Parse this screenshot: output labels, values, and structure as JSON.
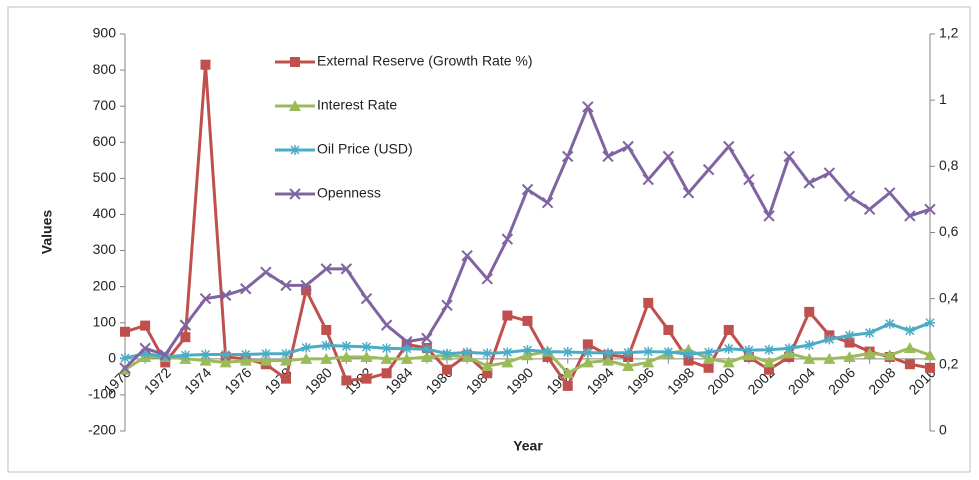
{
  "chart_data": {
    "type": "line",
    "x_label": "Year",
    "y_label": "Values",
    "categories": [
      "1970",
      null,
      "1972",
      null,
      "1974",
      null,
      "1976",
      null,
      "1978",
      null,
      "1980",
      null,
      "1982",
      null,
      "1984",
      null,
      "1986",
      null,
      "1988",
      null,
      "1990",
      null,
      "1992",
      null,
      "1994",
      null,
      "1996",
      null,
      "1998",
      null,
      "2000",
      null,
      "2002",
      null,
      "2004",
      null,
      "2006",
      null,
      "2008",
      null,
      "2010"
    ],
    "ylim": [
      -200,
      900
    ],
    "yticks": [
      -200,
      -100,
      0,
      100,
      200,
      300,
      400,
      500,
      600,
      700,
      800,
      900
    ],
    "y2lim": [
      0,
      1.2
    ],
    "y2ticks": [
      0,
      {
        "value": 0.2,
        "label": "0,2"
      },
      {
        "value": 0.4,
        "label": "0,4"
      },
      {
        "value": 0.6,
        "label": "0,6"
      },
      {
        "value": 0.8,
        "label": "0,8"
      },
      1,
      {
        "value": 1.2,
        "label": "1,2"
      }
    ],
    "legend": "upper left",
    "series": [
      {
        "name": "External Reserve (Growth Rate %)",
        "color": "#c0504d",
        "marker": "square",
        "values": [
          75,
          92,
          -10,
          60,
          815,
          5,
          0,
          -15,
          -55,
          190,
          80,
          -60,
          -55,
          -40,
          40,
          30,
          -30,
          10,
          -40,
          120,
          105,
          5,
          -75,
          40,
          10,
          5,
          155,
          80,
          -5,
          -25,
          80,
          5,
          -30,
          5,
          130,
          65,
          45,
          20,
          5,
          -15,
          -25
        ]
      },
      {
        "name": "Interest Rate",
        "color": "#9bbb59",
        "marker": "triangle",
        "values": [
          -30,
          5,
          5,
          0,
          -5,
          -10,
          -5,
          -5,
          -5,
          0,
          0,
          5,
          5,
          0,
          0,
          5,
          10,
          5,
          -20,
          -10,
          10,
          20,
          -40,
          -10,
          -5,
          -20,
          -10,
          15,
          25,
          0,
          -10,
          10,
          -10,
          15,
          0,
          0,
          5,
          15,
          10,
          30,
          10
        ]
      },
      {
        "name": "Oil Price (USD)",
        "color": "#4bacc6",
        "marker": "star",
        "values": [
          2,
          15,
          5,
          10,
          12,
          12,
          12,
          14,
          14,
          31,
          37,
          35,
          33,
          29,
          28,
          27,
          14,
          18,
          15,
          18,
          24,
          20,
          19,
          17,
          16,
          17,
          20,
          19,
          13,
          18,
          28,
          24,
          25,
          29,
          38,
          54,
          65,
          72,
          97,
          78,
          100
        ]
      },
      {
        "name": "Openness",
        "color": "#8064a2",
        "marker": "x",
        "axis": "y2",
        "values": [
          0.19,
          0.25,
          0.23,
          0.32,
          0.4,
          0.41,
          0.43,
          0.48,
          0.44,
          0.44,
          0.49,
          0.49,
          0.4,
          0.32,
          0.27,
          0.28,
          0.38,
          0.53,
          0.46,
          0.58,
          0.73,
          0.69,
          0.83,
          0.98,
          0.83,
          0.86,
          0.76,
          0.83,
          0.72,
          0.79,
          0.86,
          0.76,
          0.65,
          0.83,
          0.75,
          0.78,
          0.71,
          0.67,
          0.72,
          0.65,
          0.67
        ]
      }
    ]
  }
}
